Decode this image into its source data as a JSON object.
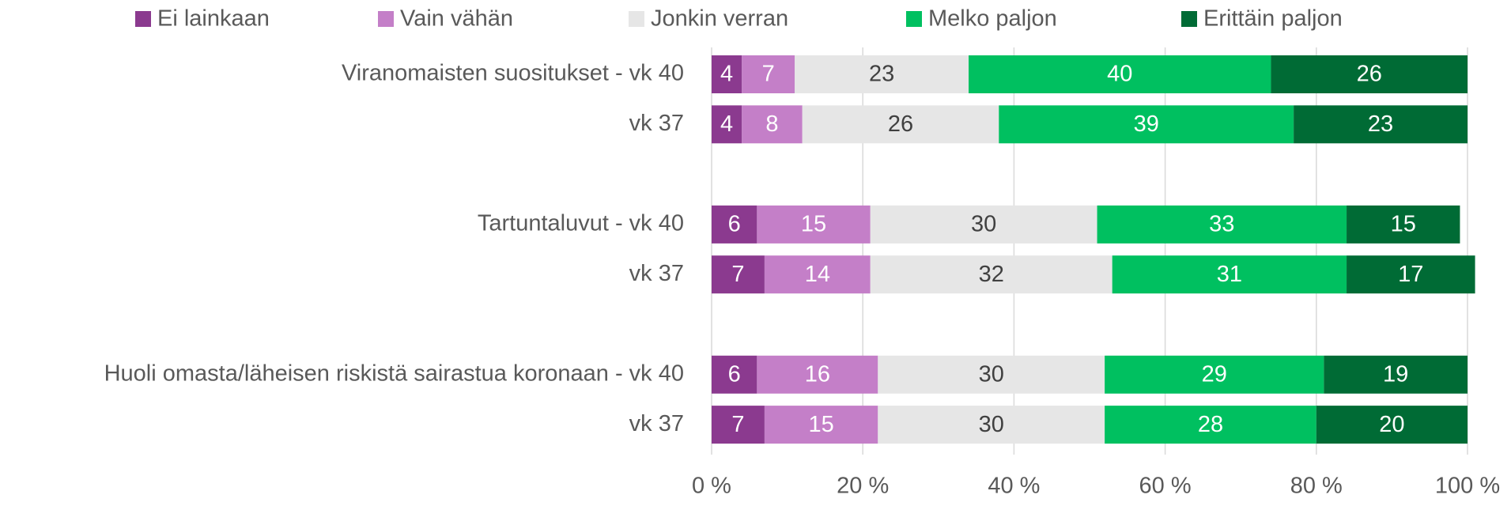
{
  "chart_data": {
    "type": "stacked_bar_horizontal",
    "categories": [
      "Viranomaisten suositukset - vk 40",
      "vk 37",
      "Tartuntaluvut - vk 40",
      "vk 37",
      "Huoli omasta/läheisen riskistä sairastua koronaan - vk 40",
      "vk 37"
    ],
    "series": [
      {
        "name": "Ei lainkaan",
        "color": "#8b3a8f",
        "label_color": "#ffffff",
        "values": [
          4,
          4,
          6,
          7,
          6,
          7
        ]
      },
      {
        "name": "Vain vähän",
        "color": "#c47fc8",
        "label_color": "#ffffff",
        "values": [
          7,
          8,
          15,
          14,
          16,
          15
        ]
      },
      {
        "name": "Jonkin verran",
        "color": "#e6e6e6",
        "label_color": "#404040",
        "values": [
          23,
          26,
          30,
          32,
          30,
          30
        ]
      },
      {
        "name": "Melko paljon",
        "color": "#00c060",
        "label_color": "#ffffff",
        "values": [
          40,
          39,
          33,
          31,
          29,
          28
        ]
      },
      {
        "name": "Erittäin paljon",
        "color": "#006b35",
        "label_color": "#ffffff",
        "values": [
          26,
          23,
          15,
          17,
          19,
          20
        ]
      }
    ],
    "xlim": [
      0,
      100
    ],
    "xticks": [
      {
        "value": 0,
        "label": "0 %"
      },
      {
        "value": 20,
        "label": "20 %"
      },
      {
        "value": 40,
        "label": "40 %"
      },
      {
        "value": 60,
        "label": "60 %"
      },
      {
        "value": 80,
        "label": "80 %"
      },
      {
        "value": 100,
        "label": "100 %"
      }
    ],
    "grid": true,
    "legend": "top"
  }
}
